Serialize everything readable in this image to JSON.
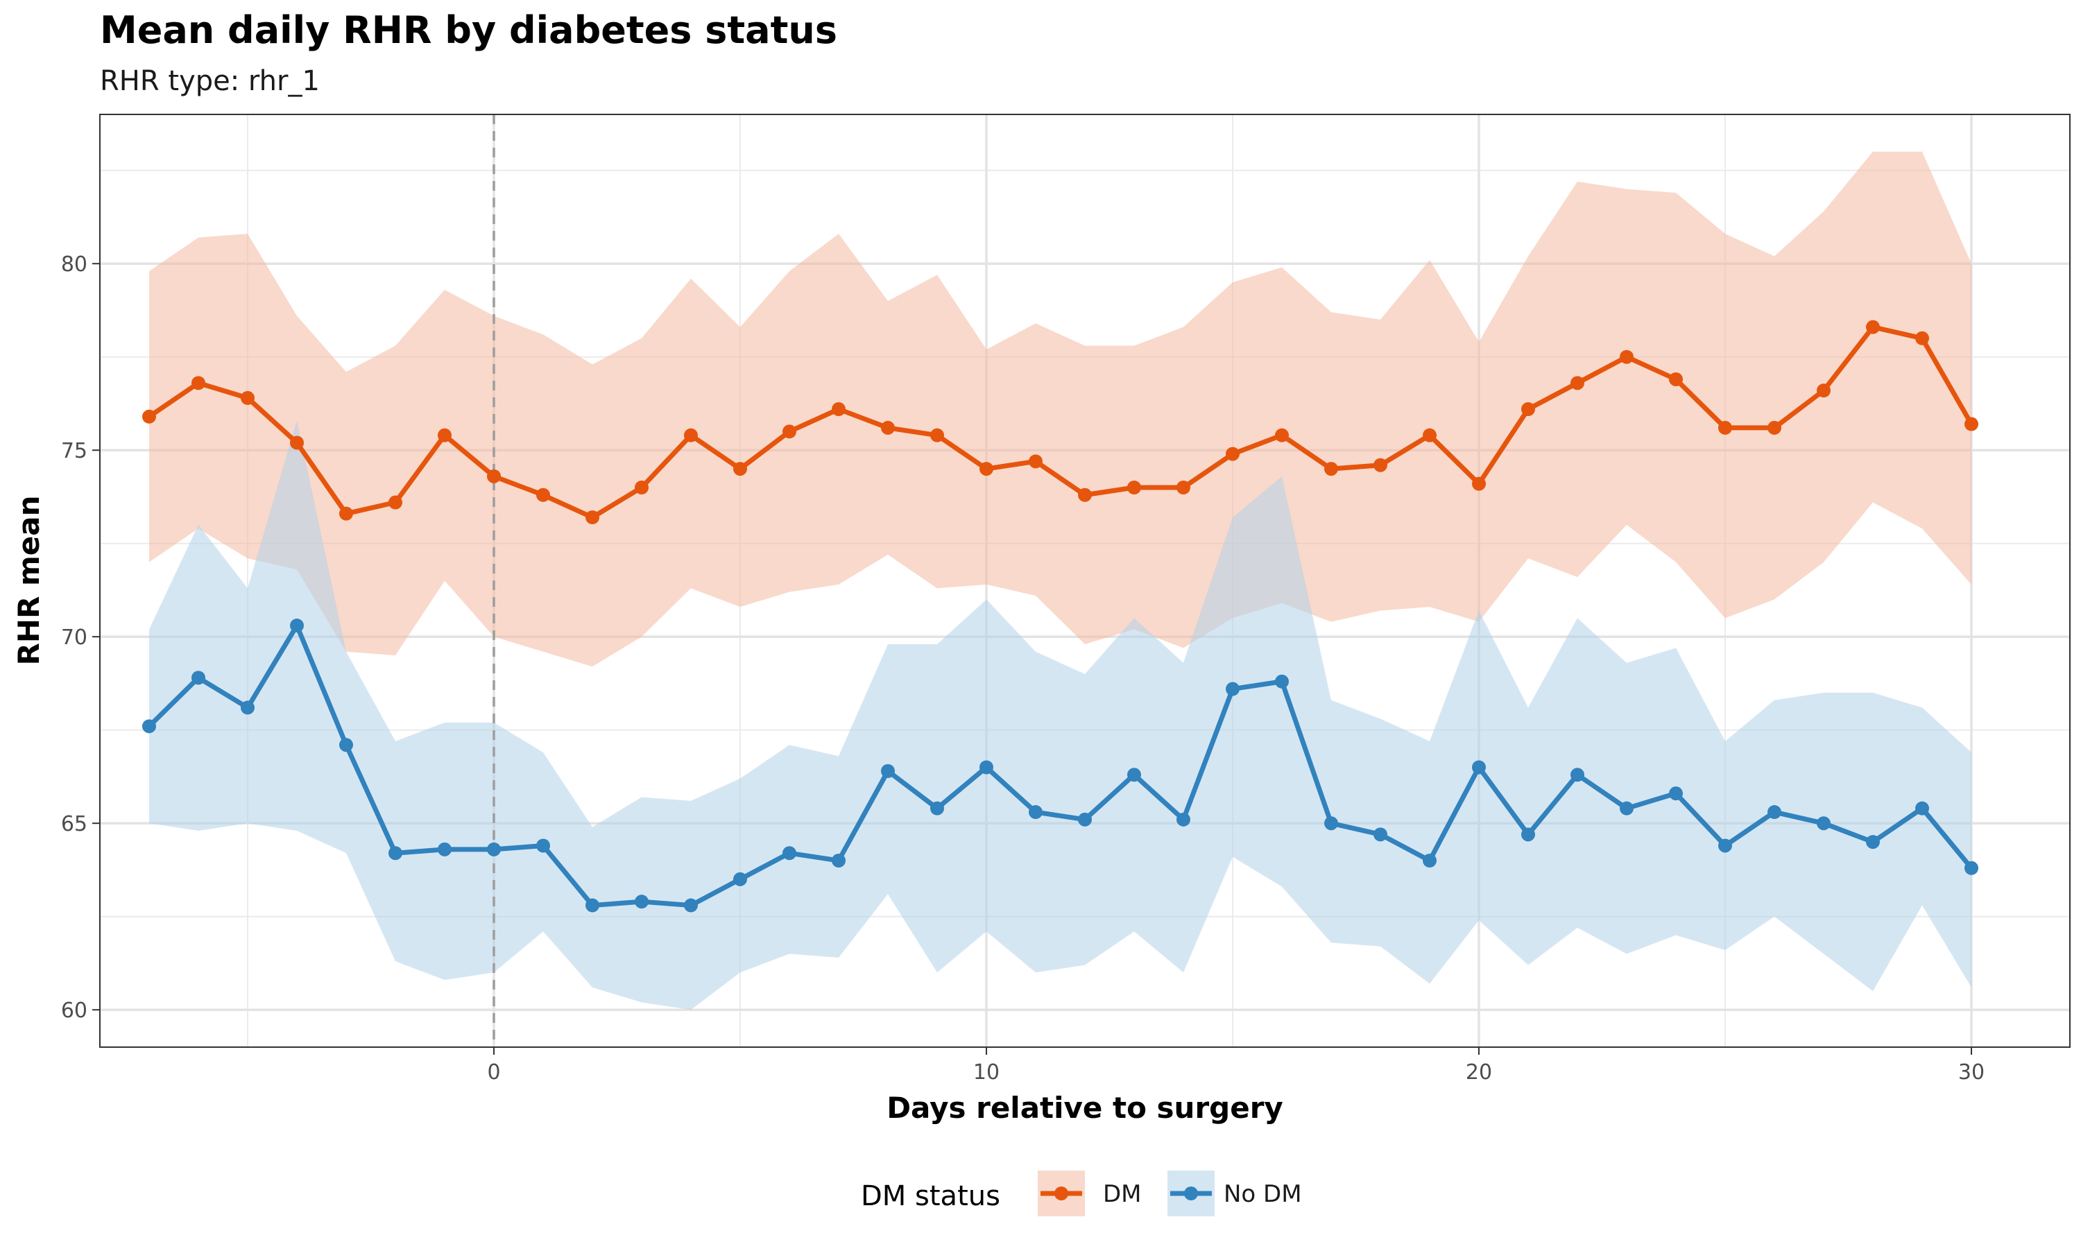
{
  "chart_data": {
    "type": "line",
    "title": "Mean daily RHR by diabetes status",
    "subtitle": "RHR type: rhr_1",
    "xlabel": "Days relative to surgery",
    "ylabel": "RHR mean",
    "xlim": [
      -8,
      32
    ],
    "ylim": [
      59,
      84
    ],
    "x_ticks": [
      0,
      10,
      20,
      30
    ],
    "y_ticks": [
      60,
      65,
      70,
      75,
      80
    ],
    "reference_line_x": 0,
    "grid": true,
    "legend": {
      "title": "DM status",
      "position": "bottom"
    },
    "x": [
      -7,
      -6,
      -5,
      -4,
      -3,
      -2,
      -1,
      0,
      1,
      2,
      3,
      4,
      5,
      6,
      7,
      8,
      9,
      10,
      11,
      12,
      13,
      14,
      15,
      16,
      17,
      18,
      19,
      20,
      21,
      22,
      23,
      24,
      25,
      26,
      27,
      28,
      29,
      30
    ],
    "series": [
      {
        "name": "DM",
        "color": "#e6550d",
        "fill_color": "#f4b9a0",
        "values": [
          75.9,
          76.8,
          76.4,
          75.2,
          73.3,
          73.6,
          75.4,
          74.3,
          73.8,
          73.2,
          74.0,
          75.4,
          74.5,
          75.5,
          76.1,
          75.6,
          75.4,
          74.5,
          74.7,
          73.8,
          74.0,
          74.0,
          74.9,
          75.4,
          74.5,
          74.6,
          75.4,
          74.1,
          76.1,
          76.8,
          77.5,
          76.9,
          75.6,
          75.6,
          76.6,
          78.3,
          78.0,
          75.7
        ],
        "lower": [
          72.0,
          72.9,
          72.1,
          71.8,
          69.6,
          69.5,
          71.5,
          70.0,
          69.6,
          69.2,
          70.0,
          71.3,
          70.8,
          71.2,
          71.4,
          72.2,
          71.3,
          71.4,
          71.1,
          69.8,
          70.2,
          69.7,
          70.5,
          70.9,
          70.4,
          70.7,
          70.8,
          70.4,
          72.1,
          71.6,
          73.0,
          72.0,
          70.5,
          71.0,
          72.0,
          73.6,
          72.9,
          71.4
        ],
        "upper": [
          79.8,
          80.7,
          80.8,
          78.6,
          77.1,
          77.8,
          79.3,
          78.6,
          78.1,
          77.3,
          78.0,
          79.6,
          78.3,
          79.8,
          80.8,
          79.0,
          79.7,
          77.7,
          78.4,
          77.8,
          77.8,
          78.3,
          79.5,
          79.9,
          78.7,
          78.5,
          80.1,
          77.9,
          80.2,
          82.2,
          82.0,
          81.9,
          80.8,
          80.2,
          81.4,
          83.0,
          83.0,
          80.0
        ]
      },
      {
        "name": "No DM",
        "color": "#3182bd",
        "fill_color": "#b3d2ea",
        "values": [
          67.6,
          68.9,
          68.1,
          70.3,
          67.1,
          64.2,
          64.3,
          64.3,
          64.4,
          62.8,
          62.9,
          62.8,
          63.5,
          64.2,
          64.0,
          66.4,
          65.4,
          66.5,
          65.3,
          65.1,
          66.3,
          65.1,
          68.6,
          68.8,
          65.0,
          64.7,
          64.0,
          66.5,
          64.7,
          66.3,
          65.4,
          65.8,
          64.4,
          65.3,
          65.0,
          64.5,
          65.4,
          63.8
        ],
        "lower": [
          65.0,
          64.8,
          65.0,
          64.8,
          64.2,
          61.3,
          60.8,
          61.0,
          62.1,
          60.6,
          60.2,
          60.0,
          61.0,
          61.5,
          61.4,
          63.1,
          61.0,
          62.1,
          61.0,
          61.2,
          62.1,
          61.0,
          64.1,
          63.3,
          61.8,
          61.7,
          60.7,
          62.4,
          61.2,
          62.2,
          61.5,
          62.0,
          61.6,
          62.5,
          61.5,
          60.5,
          62.8,
          60.6
        ],
        "upper": [
          70.2,
          73.0,
          71.3,
          75.8,
          69.6,
          67.2,
          67.7,
          67.7,
          66.9,
          64.9,
          65.7,
          65.6,
          66.2,
          67.1,
          66.8,
          69.8,
          69.8,
          71.0,
          69.6,
          69.0,
          70.5,
          69.3,
          73.2,
          74.3,
          68.3,
          67.8,
          67.2,
          70.7,
          68.1,
          70.5,
          69.3,
          69.7,
          67.2,
          68.3,
          68.5,
          68.5,
          68.1,
          66.9
        ]
      }
    ]
  }
}
